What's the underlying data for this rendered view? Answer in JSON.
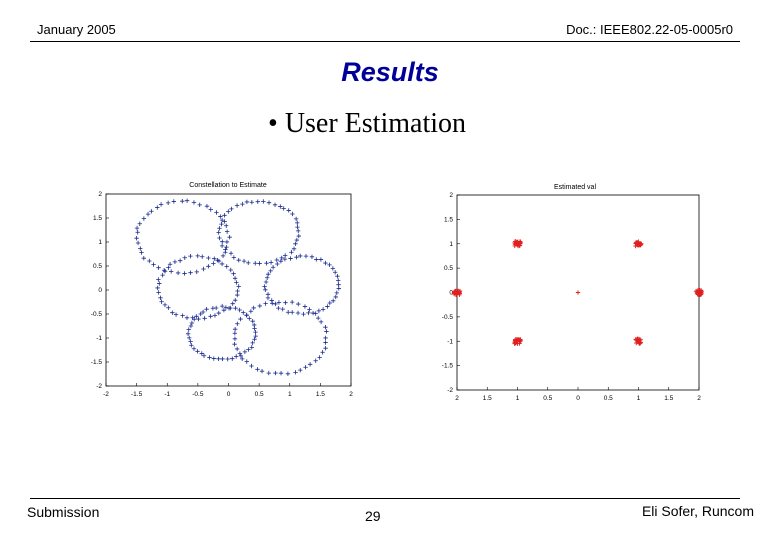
{
  "header": {
    "date": "January 2005",
    "doc_id": "Doc.: IEEE802.22-05-0005r0"
  },
  "title": "Results",
  "bullet": {
    "symbol": "•",
    "text": "User Estimation"
  },
  "footer": {
    "left": "Submission",
    "page_number": "29",
    "right": "Eli Sofer, Runcom"
  },
  "colors": {
    "title": "#000099",
    "constellation_points": "#1a2a8c",
    "estimated_points": "#e02020"
  },
  "chart_data": [
    {
      "type": "scatter",
      "title": "Constellation to Estimate",
      "xlim": [
        -2,
        2
      ],
      "ylim": [
        -2,
        2
      ],
      "x_ticks": [
        "-2",
        "-1.5",
        "-1",
        "-0.5",
        "0",
        "0.5",
        "1",
        "1.5",
        "2"
      ],
      "y_ticks": [
        "2",
        "1.5",
        "1",
        "0.5",
        "0",
        "-0.5",
        "-1",
        "-1.5",
        "-2"
      ],
      "marker": "+",
      "series": [
        {
          "circles": [
            {
              "center": [
                -0.75,
                1.1
              ],
              "radius": 0.75
            },
            {
              "center": [
                0.5,
                1.2
              ],
              "radius": 0.65
            },
            {
              "center": [
                -0.5,
                0.05
              ],
              "radius": 0.65
            },
            {
              "center": [
                1.2,
                0.1
              ],
              "radius": 0.6
            },
            {
              "center": [
                -0.1,
                -0.9
              ],
              "radius": 0.55
            },
            {
              "center": [
                0.85,
                -1.0
              ],
              "radius": 0.75
            }
          ]
        }
      ]
    },
    {
      "type": "scatter",
      "title": "Estimated val",
      "xlim": [
        -2,
        2
      ],
      "ylim": [
        -2,
        2
      ],
      "x_ticks": [
        "2",
        "1.5",
        "1",
        "0.5",
        "0",
        "0.5",
        "1",
        "1.5",
        "2"
      ],
      "y_ticks": [
        "2",
        "1.5",
        "1",
        "0.5",
        "0",
        "-0.5",
        "-1",
        "-1.5",
        "-2"
      ],
      "marker": "+",
      "series": [
        {
          "clusters": [
            [
              -2,
              0
            ],
            [
              -1,
              1
            ],
            [
              1,
              1
            ],
            [
              2,
              0
            ],
            [
              -1,
              -1
            ],
            [
              1,
              -1
            ]
          ],
          "single_points": [
            [
              0,
              0
            ]
          ]
        }
      ]
    }
  ]
}
